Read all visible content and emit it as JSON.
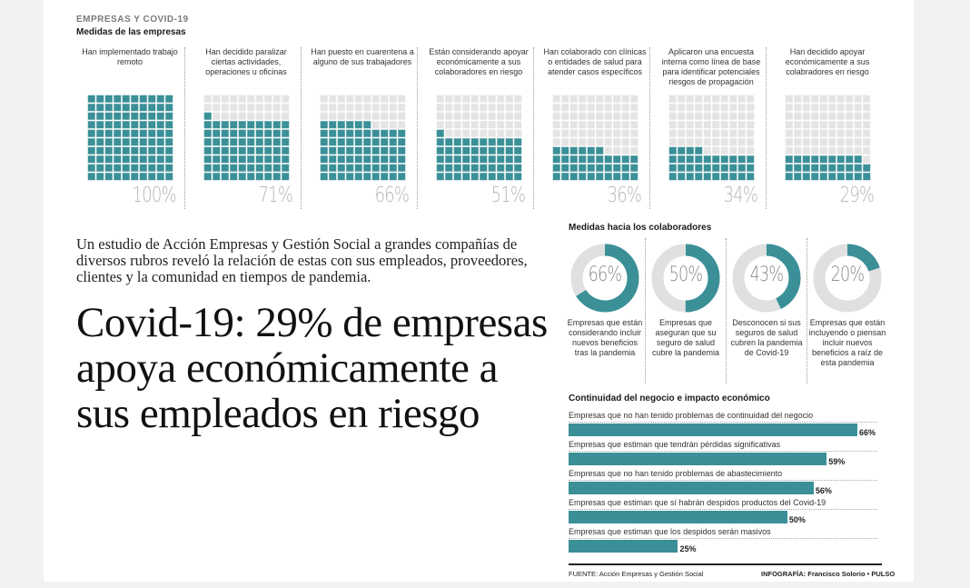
{
  "header": {
    "kicker": "EMPRESAS Y COVID-19",
    "section_measures": "Medidas de las empresas"
  },
  "colors": {
    "teal": "#3b9098",
    "empty": "#e4e4e4",
    "donut_empty": "#e0e0e0"
  },
  "measures": [
    {
      "label": "Han implementado trabajo remoto",
      "pct_text": "100%",
      "value": 100
    },
    {
      "label": "Han decidido paralizar ciertas actividades, operaciones u oficinas",
      "pct_text": "71%",
      "value": 71
    },
    {
      "label": "Han puesto en cuarentena a alguno de sus trabajadores",
      "pct_text": "66%",
      "value": 66
    },
    {
      "label": "Están considerando apoyar económicamente a sus colaboradores en riesgo",
      "pct_text": "51%",
      "value": 51
    },
    {
      "label": "Han colaborado con clínicas o entidades de salud para atender casos específicos",
      "pct_text": "36%",
      "value": 36
    },
    {
      "label": "Aplicaron una encuesta interna como línea de base para identificar potenciales riesgos de propagación",
      "pct_text": "34%",
      "value": 34
    },
    {
      "label": "Han decidido apoyar económicamente a sus colabradores en riesgo",
      "pct_text": "29%",
      "value": 29
    }
  ],
  "article": {
    "intro": "Un estudio de Acción Empresas y Gestión Social a grandes compañías de diversos rubros reveló la relación de estas con sus empleados, proveedores, clientes y la comunidad en tiempos de pandemia.",
    "headline": "Covid-19: 29% de empresas apoya económicamente a sus empleados en riesgo"
  },
  "collaborators": {
    "title": "Medidas hacia los colaboradores",
    "items": [
      {
        "pct_text": "66%",
        "value": 66,
        "label": "Empresas que están considerando incluir nuevos beneficios tras la pandemia"
      },
      {
        "pct_text": "50%",
        "value": 50,
        "label": "Empresas que aseguran que su seguro de salud cubre la pandemia"
      },
      {
        "pct_text": "43%",
        "value": 43,
        "label": "Desconocen si sus seguros de salud cubren la pandemia de Covid-19"
      },
      {
        "pct_text": "20%",
        "value": 20,
        "label": "Empresas que están incluyendo o piensan incluir nuevos beneficios a raíz de esta pandemia"
      }
    ]
  },
  "business": {
    "title": "Continuidad del negocio e impacto económico",
    "bars": [
      {
        "label": "Empresas que no han tenido problemas de continuidad del negocio",
        "value": 66,
        "value_text": "66%"
      },
      {
        "label": "Empresas que estiman que tendrán pérdidas significativas",
        "value": 59,
        "value_text": "59%"
      },
      {
        "label": "Empresas que no han tenido problemas de abastecimiento",
        "value": 56,
        "value_text": "56%"
      },
      {
        "label": "Empresas que estiman que sí habrán despidos productos del Covid-19",
        "value": 50,
        "value_text": "50%"
      },
      {
        "label": "Empresas que estiman que los despidos serán masivos",
        "value": 25,
        "value_text": "25%"
      }
    ]
  },
  "chart_data": [
    {
      "type": "waffle",
      "title": "Medidas de las empresas",
      "categories": [
        "Han implementado trabajo remoto",
        "Han decidido paralizar ciertas actividades, operaciones u oficinas",
        "Han puesto en cuarentena a alguno de sus trabajadores",
        "Están considerando apoyar económicamente a sus colaboradores en riesgo",
        "Han colaborado con clínicas o entidades de salud para atender casos específicos",
        "Aplicaron una encuesta interna como línea de base para identificar potenciales riesgos de propagación",
        "Han decidido apoyar económicamente a sus colabradores en riesgo"
      ],
      "values": [
        100,
        71,
        66,
        51,
        36,
        34,
        29
      ]
    },
    {
      "type": "donut",
      "title": "Medidas hacia los colaboradores",
      "categories": [
        "Empresas que están considerando incluir nuevos beneficios tras la pandemia",
        "Empresas que aseguran que su seguro de salud cubre la pandemia",
        "Desconocen si sus seguros de salud cubren la pandemia de Covid-19",
        "Empresas que están incluyendo o piensan incluir nuevos beneficios a raíz de esta pandemia"
      ],
      "values": [
        66,
        50,
        43,
        20
      ]
    },
    {
      "type": "bar",
      "orientation": "horizontal",
      "title": "Continuidad del negocio e impacto económico",
      "categories": [
        "Empresas que no han tenido problemas de continuidad del negocio",
        "Empresas que estiman que tendrán pérdidas significativas",
        "Empresas que no han tenido problemas de abastecimiento",
        "Empresas que estiman que sí habrán despidos productos del Covid-19",
        "Empresas que estiman que los despidos serán masivos"
      ],
      "values": [
        66,
        59,
        56,
        50,
        25
      ]
    }
  ],
  "footer": {
    "source": "FUENTE: Acción Empresas y Gestión Social",
    "credit_prefix": "INFOGRAFÍA: Francisco Solorio",
    "credit_brand": "PULSO"
  }
}
